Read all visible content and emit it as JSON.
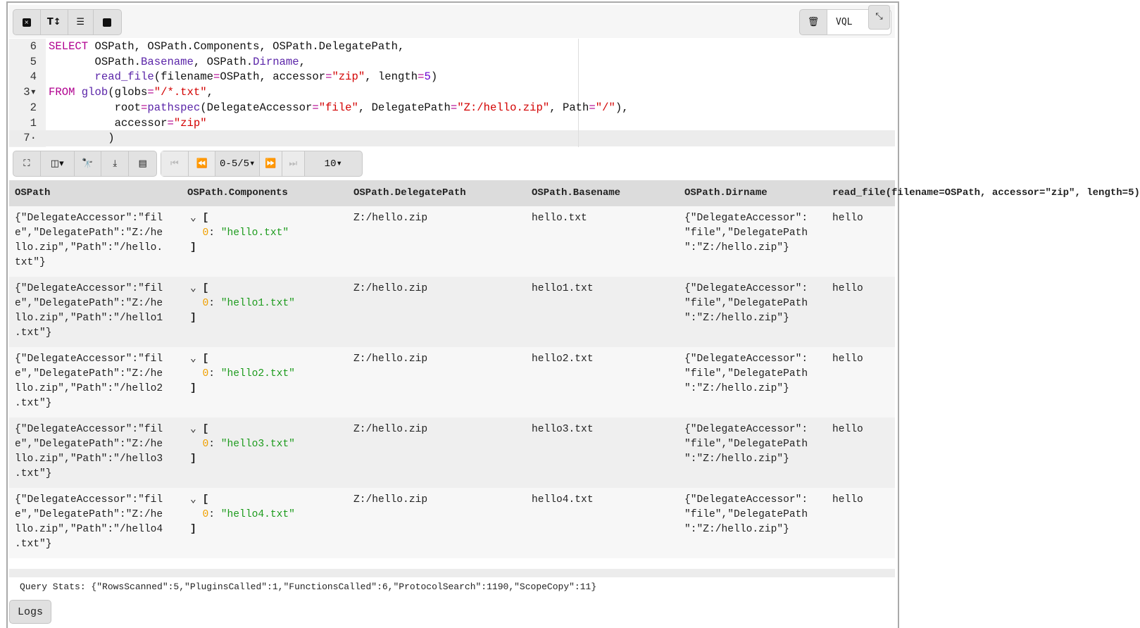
{
  "toolbar": {
    "buttons": [
      {
        "icon": "close-square-icon",
        "glyph": "✖"
      },
      {
        "icon": "text-size-icon",
        "glyph": "T↕"
      },
      {
        "icon": "indent-icon",
        "glyph": "⇥"
      },
      {
        "icon": "save-icon",
        "glyph": "💾"
      }
    ],
    "delete_icon": "trash-icon",
    "language": "VQL",
    "collapse_icon": "compress-icon"
  },
  "editor": {
    "lines": [
      {
        "num": "6",
        "html": "<span class='kw'>SELECT</span> OSPath, OSPath.Components, OSPath.DelegatePath,"
      },
      {
        "num": "5",
        "html": "       OSPath.<span class='at'>Basename</span>, OSPath.<span class='at'>Dirname</span>,"
      },
      {
        "num": "4",
        "html": "       <span class='fn'>read_file</span>(filename<span class='op'>=</span>OSPath, accessor<span class='op'>=</span><span class='st'>\"zip\"</span>, length<span class='op'>=</span><span class='nu'>5</span>)"
      },
      {
        "num": "3▾",
        "html": "<span class='kw'>FROM</span> <span class='fn'>glob</span>(globs<span class='op'>=</span><span class='st'>\"/*.txt\"</span>,"
      },
      {
        "num": "2",
        "html": "          root<span class='op'>=</span><span class='fn'>pathspec</span>(DelegateAccessor<span class='op'>=</span><span class='st'>\"file\"</span>, DelegatePath<span class='op'>=</span><span class='st'>\"Z:/hello.zip\"</span>, Path<span class='op'>=</span><span class='st'>\"/\"</span>),"
      },
      {
        "num": "1",
        "html": "          accessor<span class='op'>=</span><span class='st'>\"zip\"</span>"
      },
      {
        "num": "7·",
        "html": "         )"
      }
    ]
  },
  "table_toolbar": {
    "page_range": "0-5/5",
    "page_size": "10"
  },
  "table": {
    "columns": [
      "OSPath",
      "OSPath.Components",
      "OSPath.DelegatePath",
      "OSPath.Basename",
      "OSPath.Dirname",
      "read_file(filename=OSPath, accessor=\"zip\", length=5)"
    ],
    "rows": [
      {
        "ospath": "{\"DelegateAccessor\":\"fil\ne\",\"DelegatePath\":\"Z:/he\nllo.zip\",\"Path\":\"/hello.\ntxt\"}",
        "components": [
          "hello.txt"
        ],
        "delegate": "Z:/hello.zip",
        "basename": "hello.txt",
        "dirname": "{\"DelegateAccessor\":\n\"file\",\"DelegatePath\n\":\"Z:/hello.zip\"}",
        "read": "hello"
      },
      {
        "ospath": "{\"DelegateAccessor\":\"fil\ne\",\"DelegatePath\":\"Z:/he\nllo.zip\",\"Path\":\"/hello1\n.txt\"}",
        "components": [
          "hello1.txt"
        ],
        "delegate": "Z:/hello.zip",
        "basename": "hello1.txt",
        "dirname": "{\"DelegateAccessor\":\n\"file\",\"DelegatePath\n\":\"Z:/hello.zip\"}",
        "read": "hello"
      },
      {
        "ospath": "{\"DelegateAccessor\":\"fil\ne\",\"DelegatePath\":\"Z:/he\nllo.zip\",\"Path\":\"/hello2\n.txt\"}",
        "components": [
          "hello2.txt"
        ],
        "delegate": "Z:/hello.zip",
        "basename": "hello2.txt",
        "dirname": "{\"DelegateAccessor\":\n\"file\",\"DelegatePath\n\":\"Z:/hello.zip\"}",
        "read": "hello"
      },
      {
        "ospath": "{\"DelegateAccessor\":\"fil\ne\",\"DelegatePath\":\"Z:/he\nllo.zip\",\"Path\":\"/hello3\n.txt\"}",
        "components": [
          "hello3.txt"
        ],
        "delegate": "Z:/hello.zip",
        "basename": "hello3.txt",
        "dirname": "{\"DelegateAccessor\":\n\"file\",\"DelegatePath\n\":\"Z:/hello.zip\"}",
        "read": "hello"
      },
      {
        "ospath": "{\"DelegateAccessor\":\"fil\ne\",\"DelegatePath\":\"Z:/he\nllo.zip\",\"Path\":\"/hello4\n.txt\"}",
        "components": [
          "hello4.txt"
        ],
        "delegate": "Z:/hello.zip",
        "basename": "hello4.txt",
        "dirname": "{\"DelegateAccessor\":\n\"file\",\"DelegatePath\n\":\"Z:/hello.zip\"}",
        "read": "hello"
      }
    ]
  },
  "footer": {
    "stats": "Query Stats: {\"RowsScanned\":5,\"PluginsCalled\":1,\"FunctionsCalled\":6,\"ProtocolSearch\":1190,\"ScopeCopy\":11}",
    "logs_label": "Logs"
  }
}
